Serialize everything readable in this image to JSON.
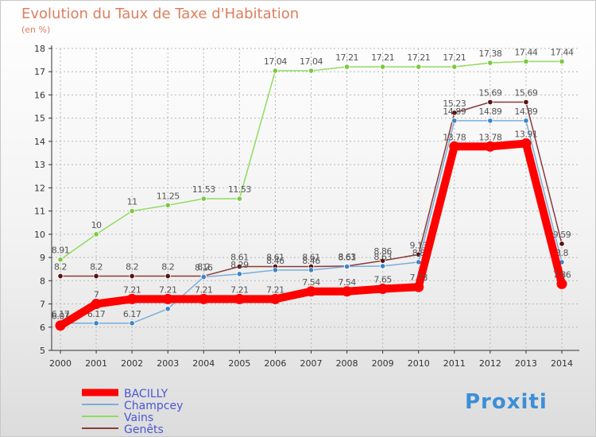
{
  "title": "Evolution du Taux de Taxe d'Habitation",
  "subtitle": "(en %)",
  "brand": "Proxiti",
  "chart_data": {
    "type": "line",
    "title": "Evolution du Taux de Taxe d'Habitation",
    "ylabel": "(en %)",
    "ylim": [
      5,
      18
    ],
    "yticks": [
      5,
      6,
      7,
      8,
      9,
      10,
      11,
      12,
      13,
      14,
      15,
      16,
      17,
      18
    ],
    "x": [
      2000,
      2001,
      2002,
      2003,
      2004,
      2005,
      2006,
      2007,
      2008,
      2009,
      2010,
      2011,
      2012,
      2013,
      2014
    ],
    "grid": true,
    "legend": "bottom-left",
    "series": [
      {
        "name": "Genêts",
        "color": "#8b3a3a",
        "pointColor": "#5a1010",
        "values": [
          8.2,
          8.2,
          8.2,
          8.2,
          8.2,
          8.61,
          8.61,
          8.61,
          8.63,
          8.86,
          9.13,
          15.23,
          15.69,
          15.69,
          9.59
        ],
        "labels": [
          "8.2",
          "8.2",
          "8.2",
          "8.2",
          "8.2",
          "8.61",
          "8.61",
          "8.61",
          "8.63",
          "8.86",
          "9.13",
          "15.23",
          "15.69",
          "15.69",
          "9.59"
        ]
      },
      {
        "name": "Vains",
        "color": "#90dc60",
        "pointColor": "#7ac943",
        "values": [
          8.91,
          10,
          11,
          11.25,
          11.53,
          11.53,
          17.04,
          17.04,
          17.21,
          17.21,
          17.21,
          17.21,
          17.38,
          17.44,
          17.44
        ],
        "labels": [
          "8.91",
          "10",
          "11",
          "11.25",
          "11.53",
          "11.53",
          "17.04",
          "17.04",
          "17.21",
          "17.21",
          "17.21",
          "17.21",
          "17.38",
          "17.44",
          "17.44"
        ]
      },
      {
        "name": "Champcey",
        "color": "#7aaed8",
        "pointColor": "#3a86c8",
        "values": [
          6.17,
          6.17,
          6.17,
          6.79,
          8.16,
          8.29,
          8.46,
          8.46,
          8.61,
          8.63,
          8.8,
          14.89,
          14.89,
          14.89,
          8.8
        ],
        "labels": [
          "6.17",
          "6.17",
          "6.17",
          "6.79",
          "8.16",
          "8.29",
          "8.46",
          "8.46",
          "8.61",
          "8.63",
          "8.8",
          "14.89",
          "14.89",
          "14.89",
          "8.8"
        ]
      },
      {
        "name": "BACILLY",
        "color": "#ff0000",
        "pointColor": "#ff0000",
        "values": [
          6.07,
          7,
          7.21,
          7.21,
          7.21,
          7.21,
          7.21,
          7.54,
          7.54,
          7.65,
          7.73,
          13.78,
          13.78,
          13.91,
          7.86
        ],
        "labels": [
          "6.07",
          "7",
          "7.21",
          "7.21",
          "7.21",
          "7.21",
          "7.21",
          "7.54",
          "7.54",
          "7.65",
          "7.73",
          "13.78",
          "13.78",
          "13.91",
          "7.86"
        ]
      }
    ],
    "legend_order": [
      "BACILLY",
      "Champcey",
      "Vains",
      "Genêts"
    ]
  }
}
